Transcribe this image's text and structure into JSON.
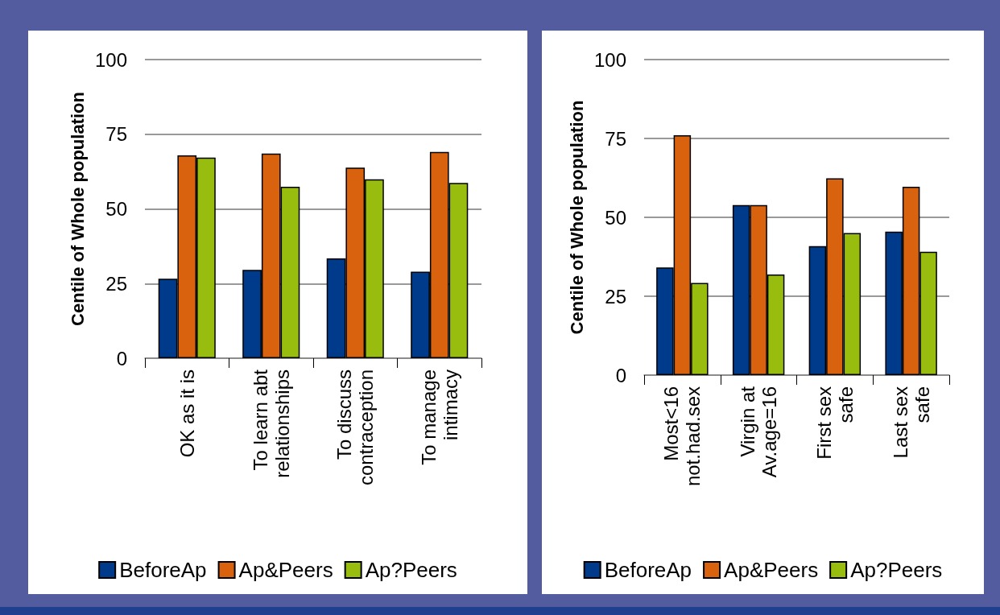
{
  "chart_data": [
    {
      "type": "bar",
      "ylabel": "Centile of Whole population",
      "categories": [
        "OK as it is",
        "To learn abt\nrelationships",
        "To discuss\ncontraception",
        "To manage\nintimacy"
      ],
      "series": [
        {
          "name": "BeforeAp",
          "color": "#003a8a",
          "values": [
            26.6,
            29.6,
            33.4,
            29.0
          ]
        },
        {
          "name": "Ap&Peers",
          "color": "#d9620e",
          "values": [
            67.9,
            68.5,
            63.8,
            69.1
          ]
        },
        {
          "name": "Ap?Peers",
          "color": "#99bd0f",
          "values": [
            67.2,
            57.4,
            59.9,
            58.7
          ]
        }
      ],
      "ylim": [
        0,
        100
      ],
      "yticks": [
        0,
        25,
        50,
        75,
        100
      ],
      "grid": "y",
      "legend": "bottom"
    },
    {
      "type": "bar",
      "ylabel": "Centile of Whole population",
      "categories": [
        "Most<16\nnot.had.sex",
        "Virgin at\nAv.age=16",
        "First sex\nsafe",
        "Last sex\nsafe"
      ],
      "series": [
        {
          "name": "BeforeAp",
          "color": "#003a8a",
          "values": [
            34.1,
            53.9,
            40.9,
            45.5
          ]
        },
        {
          "name": "Ap&Peers",
          "color": "#d9620e",
          "values": [
            76.0,
            53.9,
            62.4,
            59.7
          ]
        },
        {
          "name": "Ap?Peers",
          "color": "#99bd0f",
          "values": [
            29.2,
            31.9,
            45.0,
            39.1
          ]
        }
      ],
      "ylim": [
        0,
        100
      ],
      "yticks": [
        0,
        25,
        50,
        75,
        100
      ],
      "grid": "y",
      "legend": "bottom"
    }
  ]
}
